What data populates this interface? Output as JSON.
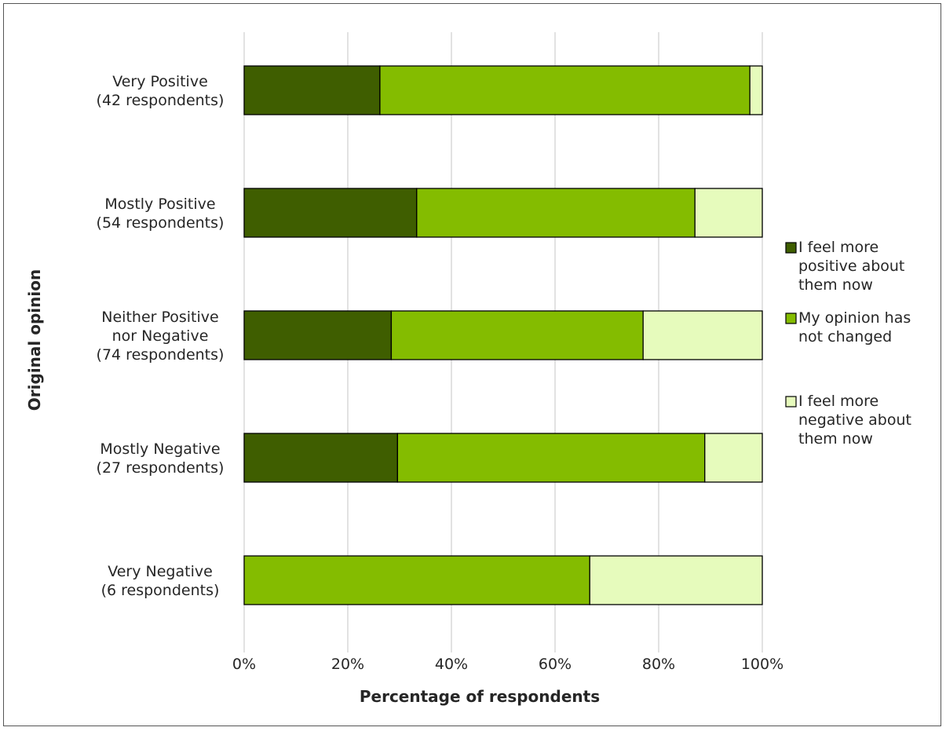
{
  "chart_data": {
    "type": "bar",
    "orientation": "horizontal",
    "stacked": "percent",
    "xlabel": "Percentage of respondents",
    "ylabel": "Original opinion",
    "xlim": [
      0,
      100
    ],
    "x_ticks": [
      "0%",
      "20%",
      "40%",
      "60%",
      "80%",
      "100%"
    ],
    "grid": "vertical",
    "legend_position": "right",
    "categories": [
      [
        "Very Positive",
        "(42 respondents)"
      ],
      [
        "Mostly Positive",
        "(54 respondents)"
      ],
      [
        "Neither Positive",
        "nor Negative",
        "(74 respondents)"
      ],
      [
        "Mostly Negative",
        "(27 respondents)"
      ],
      [
        "Very Negative",
        "(6 respondents)"
      ]
    ],
    "series": [
      {
        "name": [
          "I feel more",
          "positive about",
          "them now"
        ],
        "color": "#3f5e00",
        "values": [
          26.2,
          33.3,
          28.4,
          29.6,
          0
        ]
      },
      {
        "name": [
          "My opinion has",
          "not changed"
        ],
        "color": "#84bc00",
        "values": [
          71.4,
          53.7,
          48.6,
          59.3,
          66.7
        ]
      },
      {
        "name": [
          "I feel more",
          "negative about",
          "them now"
        ],
        "color": "#e6fbbc",
        "values": [
          2.4,
          13.0,
          23.0,
          11.1,
          33.3
        ]
      }
    ]
  }
}
